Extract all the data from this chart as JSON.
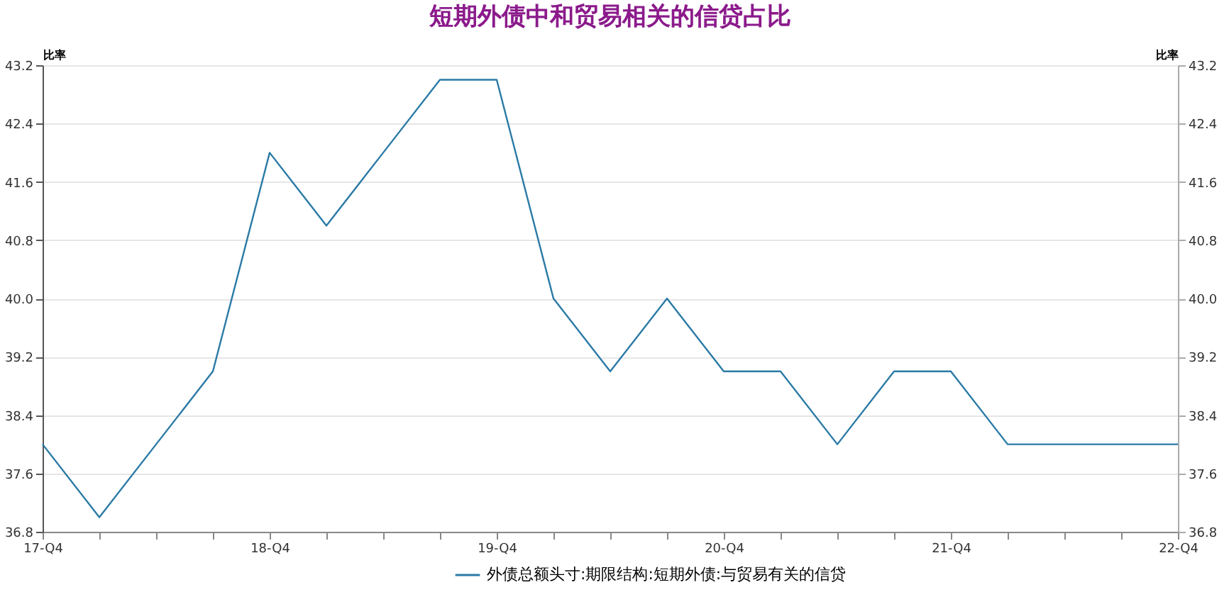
{
  "chart_data": {
    "type": "line",
    "title": "短期外债中和贸易相关的信贷占比",
    "categories": [
      "17-Q4",
      null,
      null,
      null,
      "18-Q4",
      null,
      null,
      null,
      "19-Q4",
      null,
      null,
      null,
      "20-Q4",
      null,
      null,
      null,
      "21-Q4",
      null,
      null,
      null,
      "22-Q4"
    ],
    "series": [
      {
        "name": "外债总额头寸:期限结构:短期外债:与贸易有关的信贷",
        "color": "#2a7aa6",
        "values": [
          38,
          37,
          38,
          39,
          42,
          41,
          42,
          43,
          43,
          40,
          39,
          40,
          39,
          39,
          38,
          39,
          39,
          38,
          38,
          38,
          38
        ]
      }
    ],
    "ylabel": "比率",
    "y2label": "比率",
    "ylim": [
      36.8,
      43.2
    ],
    "yticks": [
      36.8,
      37.6,
      38.4,
      39.2,
      {
        "value": 40,
        "label": "40.0"
      },
      40.8,
      41.6,
      42.4,
      43.2
    ],
    "y2lim": [
      36.8,
      43.2
    ],
    "y2ticks": [
      36.8,
      37.6,
      38.4,
      39.2,
      {
        "value": 40,
        "label": "40.0"
      },
      40.8,
      41.6,
      42.4,
      43.2
    ],
    "grid": "y",
    "legend": "bottom",
    "marker": "none",
    "line_style": "solid"
  }
}
